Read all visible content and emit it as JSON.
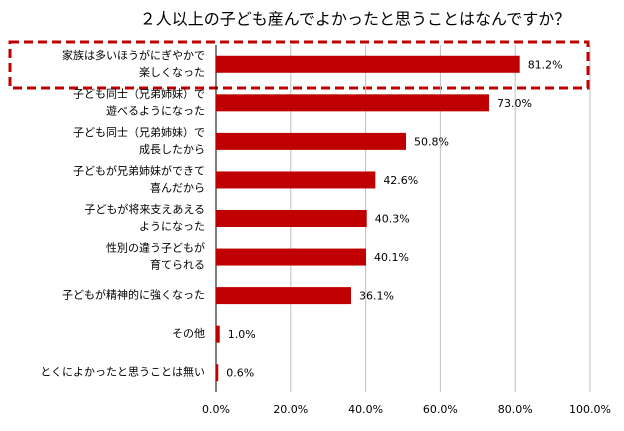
{
  "chart_data": {
    "type": "barh",
    "title": "２人以上の子ども産んでよかったと思うことはなんですか？",
    "categories": [
      [
        "家族は多いほうがにぎやかで",
        "楽しくなった"
      ],
      [
        "子ども同士（兄弟姉妹）で",
        "遊べるようになった"
      ],
      [
        "子ども同士（兄弟姉妹）で",
        "成長したから"
      ],
      [
        "子どもが兄弟姉妹ができて",
        "喜んだから"
      ],
      [
        "子どもが将来支えあえる",
        "ようになった"
      ],
      [
        "性別の違う子どもが",
        "育てられる"
      ],
      [
        "子どもが精神的に強くなった"
      ],
      [
        "その他"
      ],
      [
        "とくによかったと思うことは無い"
      ]
    ],
    "values": [
      81.2,
      73.0,
      50.8,
      42.6,
      40.3,
      40.1,
      36.1,
      1.0,
      0.6
    ],
    "value_labels": [
      "81.2%",
      "73.0%",
      "50.8%",
      "42.6%",
      "40.3%",
      "40.1%",
      "36.1%",
      "1.0%",
      "0.6%"
    ],
    "color": "#c00000",
    "xlim": [
      0,
      100
    ],
    "xticks": [
      {
        "value": 0,
        "label": "0.0%"
      },
      {
        "value": 20,
        "label": "20.0%"
      },
      {
        "value": 40,
        "label": "40.0%"
      },
      {
        "value": 60,
        "label": "60.0%"
      },
      {
        "value": 80,
        "label": "80.0%"
      },
      {
        "value": 100,
        "label": "100.0%"
      }
    ],
    "grid": true
  }
}
